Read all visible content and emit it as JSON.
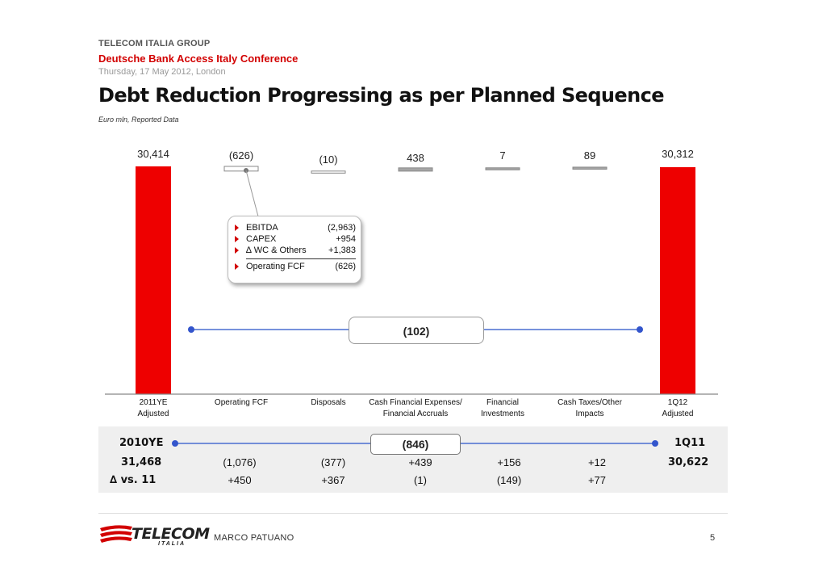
{
  "header": {
    "group": "TELECOM ITALIA GROUP",
    "event": "Deutsche Bank  Access Italy Conference",
    "date": "Thursday, 17 May 2012, London"
  },
  "title": "Debt Reduction Progressing as per Planned Sequence",
  "subtitle": "Euro mln, Reported Data",
  "chart_data": {
    "type": "bar",
    "subtype": "waterfall",
    "categories": [
      "2011YE\nAdjusted",
      "Operating FCF",
      "Disposals",
      "Cash Financial Expenses/\nFinancial Accruals",
      "Financial\nInvestments",
      "Cash Taxes/Other\nImpacts",
      "1Q12\nAdjusted"
    ],
    "values": [
      30414,
      -626,
      -10,
      438,
      7,
      89,
      30312
    ],
    "labels": [
      "30,414",
      "(626)",
      "(10)",
      "438",
      "7",
      "89",
      "30,312"
    ],
    "total_indices": [
      0,
      6
    ],
    "colors": {
      "total": "#ee0000",
      "positive": "#a6a6a6",
      "negative": "#ffffff",
      "outline": "#888888"
    }
  },
  "callout": {
    "items": [
      {
        "name": "EBITDA",
        "value": "(2,963)"
      },
      {
        "name": "CAPEX",
        "value": "+954"
      },
      {
        "name": "∆ WC & Others",
        "value": "+1,383"
      },
      {
        "name": "Operating FCF",
        "value": "(626)"
      }
    ]
  },
  "change_main": "(102)",
  "panel": {
    "left_title": "2010YE",
    "right_title": "1Q11",
    "change": "(846)",
    "row1": [
      "31,468",
      "(1,076)",
      "(377)",
      "+439",
      "+156",
      "+12",
      "30,622"
    ],
    "row2_label": "∆ vs. 11",
    "row2": [
      "+450",
      "+367",
      "(1)",
      "(149)",
      "+77"
    ]
  },
  "footer": {
    "logo": "TELECOM",
    "logo_sub": "ITALIA",
    "presenter": "MARCO PATUANO",
    "page": "5"
  }
}
